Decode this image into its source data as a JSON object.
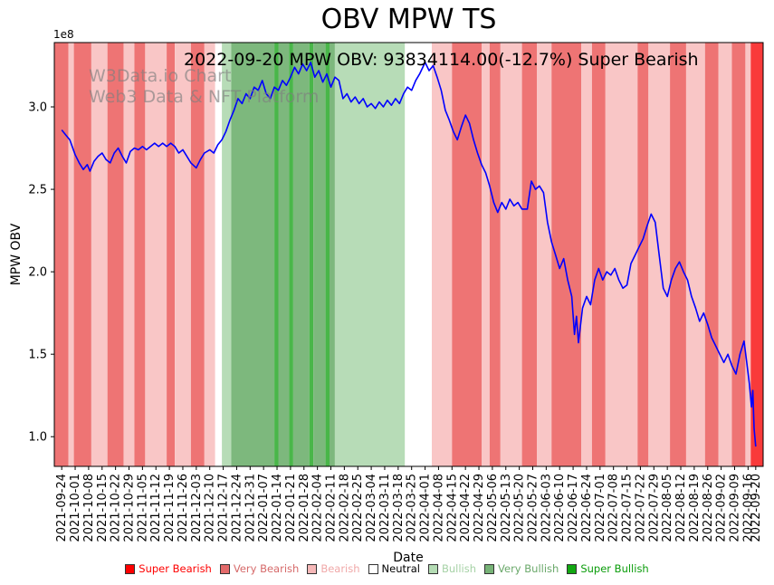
{
  "chart_data": {
    "type": "line",
    "title": "OBV MPW TS",
    "annotation": "2022-09-20 MPW OBV: 93834114.00(-12.7%) Super Bearish",
    "watermark": [
      "W3Data.io Chart",
      "Web3 Data & NFT Platform"
    ],
    "xlabel": "Date",
    "ylabel": "MPW OBV",
    "y_offset_label": "1e8",
    "unit": "1e8",
    "line_color": "#0000ff",
    "xlim": [
      -0.55,
      52.12
    ],
    "ylim": [
      0.82,
      3.39
    ],
    "x_last_tick": 51.57,
    "y_ticks": [
      1.0,
      1.5,
      2.0,
      2.5,
      3.0
    ],
    "x_tick_labels": [
      "2021-09-24",
      "2021-10-01",
      "2021-10-08",
      "2021-10-15",
      "2021-10-22",
      "2021-10-29",
      "2021-11-05",
      "2021-11-12",
      "2021-11-19",
      "2021-11-26",
      "2021-12-03",
      "2021-12-10",
      "2021-12-17",
      "2021-12-24",
      "2021-12-31",
      "2022-01-07",
      "2022-01-14",
      "2022-01-21",
      "2022-01-28",
      "2022-02-04",
      "2022-02-11",
      "2022-02-18",
      "2022-02-25",
      "2022-03-04",
      "2022-03-11",
      "2022-03-18",
      "2022-03-25",
      "2022-04-01",
      "2022-04-08",
      "2022-04-15",
      "2022-04-22",
      "2022-04-29",
      "2022-05-06",
      "2022-05-13",
      "2022-05-20",
      "2022-05-27",
      "2022-06-03",
      "2022-06-10",
      "2022-06-17",
      "2022-06-24",
      "2022-07-01",
      "2022-07-08",
      "2022-07-15",
      "2022-07-22",
      "2022-07-29",
      "2022-08-05",
      "2022-08-12",
      "2022-08-19",
      "2022-08-26",
      "2022-09-02",
      "2022-09-09",
      "2022-09-16",
      "2022-09-20"
    ],
    "last_point": {
      "date": "2022-09-20",
      "obv": 93834114.0,
      "change_pct": -12.7,
      "sentiment": "Super Bearish"
    },
    "series": [
      {
        "name": "MPW OBV",
        "x": [
          0,
          0.3,
          0.6,
          1,
          1.3,
          1.6,
          1.9,
          2.1,
          2.4,
          2.7,
          3,
          3.3,
          3.6,
          3.9,
          4.2,
          4.5,
          4.8,
          5.1,
          5.4,
          5.7,
          6,
          6.3,
          6.6,
          6.9,
          7.2,
          7.5,
          7.8,
          8.1,
          8.4,
          8.7,
          9,
          9.3,
          9.6,
          10,
          10.3,
          10.6,
          11,
          11.3,
          11.6,
          11.9,
          12.2,
          12.5,
          12.8,
          13.1,
          13.4,
          13.7,
          14,
          14.3,
          14.6,
          14.9,
          15.2,
          15.5,
          15.8,
          16.1,
          16.4,
          16.7,
          17,
          17.3,
          17.6,
          17.9,
          18.2,
          18.5,
          18.8,
          19.1,
          19.4,
          19.7,
          20,
          20.3,
          20.6,
          20.9,
          21.2,
          21.5,
          21.8,
          22.1,
          22.4,
          22.7,
          23,
          23.3,
          23.6,
          23.9,
          24.2,
          24.5,
          24.8,
          25.1,
          25.4,
          25.7,
          26,
          26.3,
          26.6,
          27,
          27.3,
          27.6,
          27.9,
          28.2,
          28.5,
          28.8,
          29.1,
          29.4,
          29.7,
          30,
          30.3,
          30.6,
          30.9,
          31.2,
          31.5,
          31.8,
          32.1,
          32.4,
          32.7,
          33,
          33.3,
          33.6,
          33.9,
          34.2,
          34.6,
          34.9,
          35.2,
          35.5,
          35.8,
          36.1,
          36.4,
          36.7,
          37,
          37.3,
          37.6,
          37.9,
          38.1,
          38.25,
          38.4,
          38.7,
          39,
          39.3,
          39.6,
          39.9,
          40.2,
          40.5,
          40.8,
          41.1,
          41.4,
          41.7,
          42,
          42.3,
          42.6,
          42.9,
          43.2,
          43.5,
          43.8,
          44.1,
          44.4,
          44.7,
          45,
          45.3,
          45.6,
          45.9,
          46.2,
          46.5,
          46.8,
          47.1,
          47.4,
          47.7,
          48,
          48.3,
          48.6,
          48.9,
          49.2,
          49.5,
          49.8,
          50.1,
          50.4,
          50.7,
          50.9,
          51.1,
          51.25,
          51.35,
          51.45,
          51.57
        ],
        "values": [
          2.86,
          2.83,
          2.8,
          2.71,
          2.66,
          2.62,
          2.65,
          2.61,
          2.67,
          2.7,
          2.72,
          2.68,
          2.66,
          2.72,
          2.75,
          2.7,
          2.66,
          2.73,
          2.75,
          2.74,
          2.76,
          2.74,
          2.76,
          2.78,
          2.76,
          2.78,
          2.76,
          2.78,
          2.76,
          2.72,
          2.74,
          2.7,
          2.66,
          2.63,
          2.68,
          2.72,
          2.74,
          2.72,
          2.77,
          2.8,
          2.85,
          2.92,
          2.98,
          3.05,
          3.02,
          3.08,
          3.05,
          3.12,
          3.1,
          3.16,
          3.08,
          3.05,
          3.12,
          3.1,
          3.16,
          3.13,
          3.18,
          3.24,
          3.2,
          3.26,
          3.22,
          3.27,
          3.18,
          3.22,
          3.15,
          3.2,
          3.12,
          3.18,
          3.16,
          3.05,
          3.08,
          3.03,
          3.06,
          3.02,
          3.05,
          3.0,
          3.02,
          2.99,
          3.03,
          3.0,
          3.04,
          3.01,
          3.05,
          3.02,
          3.08,
          3.12,
          3.1,
          3.16,
          3.2,
          3.27,
          3.22,
          3.25,
          3.18,
          3.1,
          2.98,
          2.92,
          2.85,
          2.8,
          2.88,
          2.95,
          2.9,
          2.8,
          2.72,
          2.65,
          2.6,
          2.52,
          2.42,
          2.36,
          2.42,
          2.38,
          2.44,
          2.4,
          2.42,
          2.38,
          2.38,
          2.55,
          2.5,
          2.52,
          2.48,
          2.3,
          2.18,
          2.1,
          2.02,
          2.08,
          1.95,
          1.85,
          1.62,
          1.73,
          1.57,
          1.78,
          1.85,
          1.8,
          1.95,
          2.02,
          1.95,
          2.0,
          1.98,
          2.02,
          1.95,
          1.9,
          1.92,
          2.05,
          2.1,
          2.15,
          2.2,
          2.28,
          2.35,
          2.3,
          2.1,
          1.9,
          1.85,
          1.95,
          2.02,
          2.06,
          2.0,
          1.95,
          1.85,
          1.78,
          1.7,
          1.75,
          1.68,
          1.6,
          1.55,
          1.5,
          1.45,
          1.5,
          1.43,
          1.38,
          1.5,
          1.58,
          1.45,
          1.32,
          1.18,
          1.28,
          1.05,
          0.94
        ]
      }
    ],
    "band_colors": {
      "super_bearish": "#f93a3a",
      "very_bearish": "#ee7474",
      "bearish": "#f9c6c6",
      "neutral": "#ffffff",
      "bullish": "#b7dcb7",
      "very_bullish": "#7db87d",
      "super_bullish": "#49b649"
    },
    "bands": [
      {
        "start": -0.55,
        "end": 0.5,
        "level": "very_bearish"
      },
      {
        "start": 0.5,
        "end": 0.9,
        "level": "bearish"
      },
      {
        "start": 0.9,
        "end": 2.2,
        "level": "very_bearish"
      },
      {
        "start": 2.2,
        "end": 3.4,
        "level": "bearish"
      },
      {
        "start": 3.4,
        "end": 4.6,
        "level": "very_bearish"
      },
      {
        "start": 4.6,
        "end": 5.4,
        "level": "bearish"
      },
      {
        "start": 5.4,
        "end": 6.2,
        "level": "very_bearish"
      },
      {
        "start": 6.2,
        "end": 7.8,
        "level": "bearish"
      },
      {
        "start": 7.8,
        "end": 8.4,
        "level": "very_bearish"
      },
      {
        "start": 8.4,
        "end": 9.6,
        "level": "bearish"
      },
      {
        "start": 9.6,
        "end": 10.6,
        "level": "very_bearish"
      },
      {
        "start": 10.6,
        "end": 11.4,
        "level": "bearish"
      },
      {
        "start": 11.4,
        "end": 11.9,
        "level": "neutral"
      },
      {
        "start": 11.9,
        "end": 12.6,
        "level": "bullish"
      },
      {
        "start": 12.6,
        "end": 15.8,
        "level": "very_bullish"
      },
      {
        "start": 15.8,
        "end": 16.1,
        "level": "super_bullish"
      },
      {
        "start": 16.1,
        "end": 16.9,
        "level": "very_bullish"
      },
      {
        "start": 16.9,
        "end": 17.2,
        "level": "super_bullish"
      },
      {
        "start": 17.2,
        "end": 18.4,
        "level": "very_bullish"
      },
      {
        "start": 18.4,
        "end": 18.7,
        "level": "super_bullish"
      },
      {
        "start": 18.7,
        "end": 19.6,
        "level": "very_bullish"
      },
      {
        "start": 19.6,
        "end": 19.9,
        "level": "super_bullish"
      },
      {
        "start": 19.9,
        "end": 20.3,
        "level": "very_bullish"
      },
      {
        "start": 20.3,
        "end": 25.5,
        "level": "bullish"
      },
      {
        "start": 25.5,
        "end": 27.5,
        "level": "neutral"
      },
      {
        "start": 27.5,
        "end": 29.0,
        "level": "bearish"
      },
      {
        "start": 29.0,
        "end": 31.2,
        "level": "very_bearish"
      },
      {
        "start": 31.2,
        "end": 31.8,
        "level": "bearish"
      },
      {
        "start": 31.8,
        "end": 32.6,
        "level": "very_bearish"
      },
      {
        "start": 32.6,
        "end": 34.2,
        "level": "bearish"
      },
      {
        "start": 34.2,
        "end": 35.3,
        "level": "very_bearish"
      },
      {
        "start": 35.3,
        "end": 36.4,
        "level": "bearish"
      },
      {
        "start": 36.4,
        "end": 38.6,
        "level": "very_bearish"
      },
      {
        "start": 38.6,
        "end": 39.4,
        "level": "bearish"
      },
      {
        "start": 39.4,
        "end": 40.4,
        "level": "very_bearish"
      },
      {
        "start": 40.4,
        "end": 42.8,
        "level": "bearish"
      },
      {
        "start": 42.8,
        "end": 43.6,
        "level": "very_bearish"
      },
      {
        "start": 43.6,
        "end": 45.2,
        "level": "bearish"
      },
      {
        "start": 45.2,
        "end": 46.4,
        "level": "very_bearish"
      },
      {
        "start": 46.4,
        "end": 47.8,
        "level": "bearish"
      },
      {
        "start": 47.8,
        "end": 48.8,
        "level": "very_bearish"
      },
      {
        "start": 48.8,
        "end": 49.8,
        "level": "bearish"
      },
      {
        "start": 49.8,
        "end": 50.8,
        "level": "very_bearish"
      },
      {
        "start": 50.8,
        "end": 51.2,
        "level": "bearish"
      },
      {
        "start": 51.2,
        "end": 52.12,
        "level": "super_bearish"
      }
    ],
    "legend": {
      "position": "bottom-center",
      "items": [
        {
          "label": "Super Bearish",
          "swatch": "#fe0000",
          "color": "#fe0000"
        },
        {
          "label": "Very Bearish",
          "swatch": "#e36a6a",
          "color": "#d66a6a"
        },
        {
          "label": "Bearish",
          "swatch": "#f6b8b8",
          "color": "#f0a8a8"
        },
        {
          "label": "Neutral",
          "swatch": "#ffffff",
          "color": "#000000"
        },
        {
          "label": "Bullish",
          "swatch": "#b4dcb4",
          "color": "#a6d2a6"
        },
        {
          "label": "Very Bullish",
          "swatch": "#77b377",
          "color": "#6aa86a"
        },
        {
          "label": "Super Bullish",
          "swatch": "#12a812",
          "color": "#0a9c0a"
        }
      ]
    },
    "grid": false
  }
}
